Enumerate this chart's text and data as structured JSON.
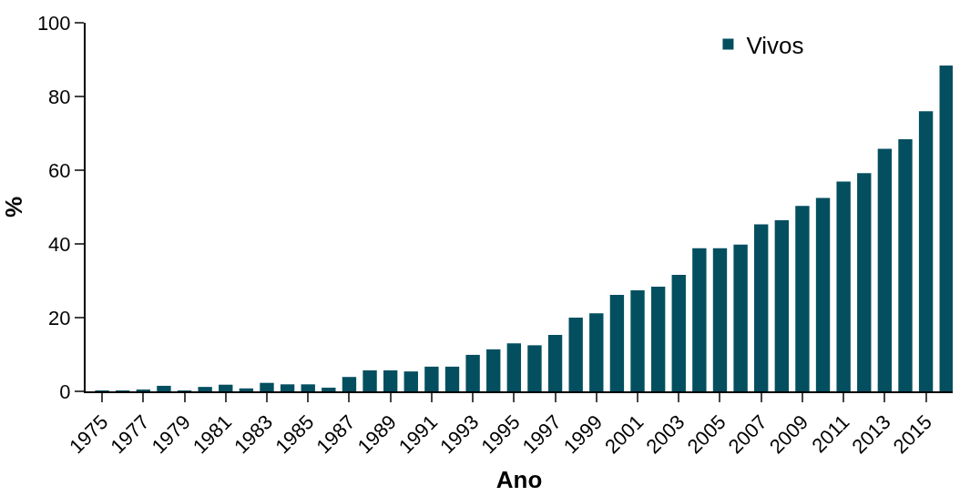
{
  "chart_data": {
    "type": "bar",
    "xlabel": "Ano",
    "ylabel": "%",
    "x": [
      1975,
      1976,
      1977,
      1978,
      1979,
      1980,
      1981,
      1982,
      1983,
      1984,
      1985,
      1986,
      1987,
      1988,
      1989,
      1990,
      1991,
      1992,
      1993,
      1994,
      1995,
      1996,
      1997,
      1998,
      1999,
      2000,
      2001,
      2002,
      2003,
      2004,
      2005,
      2006,
      2007,
      2008,
      2009,
      2010,
      2011,
      2012,
      2013,
      2014,
      2015,
      2016
    ],
    "series": [
      {
        "name": "Vivos",
        "color": "#034f60",
        "values": [
          0.2,
          0.2,
          0.5,
          1.5,
          0.1,
          1.2,
          1.8,
          0.8,
          2.3,
          1.9,
          1.9,
          1.0,
          3.9,
          5.7,
          5.7,
          5.4,
          6.7,
          6.7,
          9.9,
          11.4,
          13.0,
          12.5,
          15.3,
          20.0,
          21.2,
          26.2,
          27.4,
          28.4,
          31.6,
          38.8,
          38.8,
          39.8,
          45.3,
          46.4,
          50.3,
          52.5,
          56.9,
          59.2,
          65.8,
          68.4,
          76.0,
          88.4
        ]
      }
    ],
    "xlim": [
      1974.2,
      2016.3
    ],
    "xticks": [
      1975,
      1977,
      1979,
      1981,
      1983,
      1985,
      1987,
      1989,
      1991,
      1993,
      1995,
      1997,
      1999,
      2001,
      2003,
      2005,
      2007,
      2009,
      2011,
      2013,
      2015
    ],
    "ylim": [
      0,
      100
    ],
    "yticks": [
      0,
      20,
      40,
      60,
      80,
      100
    ],
    "legend": "top right"
  }
}
